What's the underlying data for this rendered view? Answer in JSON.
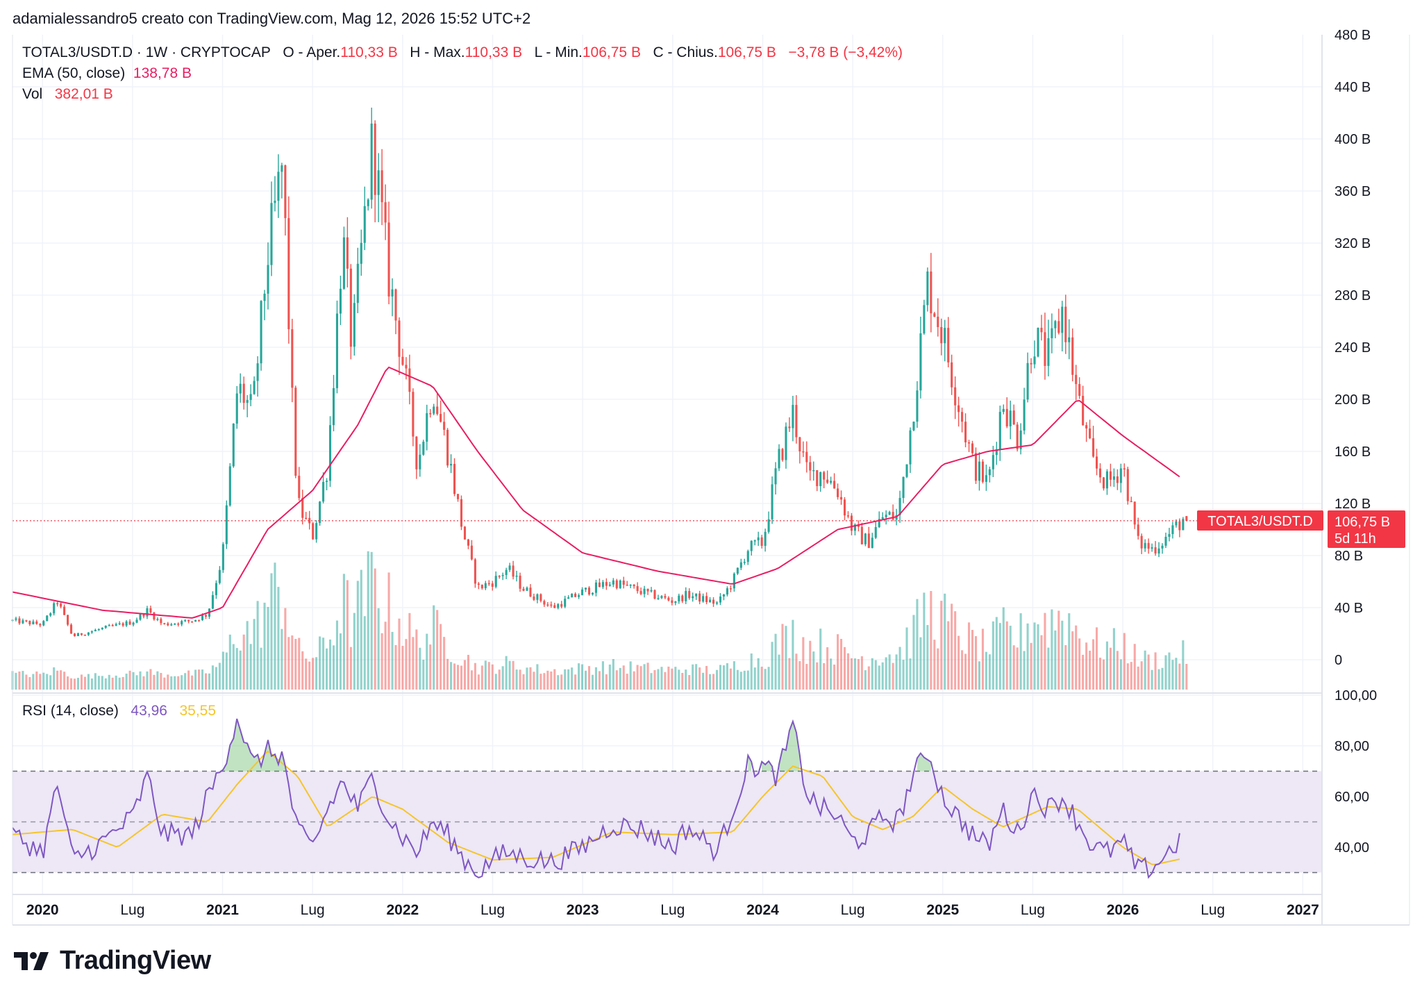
{
  "watermark": "adamialessandro5 creato con TradingView.com, Mag 12, 2026 15:52 UTC+2",
  "brand": "TradingView",
  "legend": {
    "symbol": "TOTAL3/USDT.D · 1W · CRYPTOCAP",
    "open_label": "O - Aper.",
    "open": "110,33 B",
    "high_label": "H - Max.",
    "high": "110,33 B",
    "low_label": "L - Min.",
    "low": "106,75 B",
    "close_label": "C - Chius.",
    "close": "106,75 B",
    "change": "−3,78 B (−3,42%)",
    "ema_label": "EMA (50, close)",
    "ema_value": "138,78 B",
    "vol_label": "Vol",
    "vol_value": "382,01 B",
    "rsi_label": "RSI (14, close)",
    "rsi_value": "43,96",
    "rsi_ma_value": "35,55"
  },
  "price_tag": {
    "symbol": "TOTAL3/USDT.D",
    "price": "106,75 B",
    "countdown": "5d 11h"
  },
  "colors": {
    "up": "#26A69A",
    "down": "#EF5350",
    "ema": "#E91E63",
    "rsi": "#7E57C2",
    "rsi_ma": "#F5C52A",
    "rsi_band": "#EDE7F6",
    "grid": "#F0F3FA",
    "price_line": "#F23645"
  },
  "chart_data": [
    {
      "type": "candlestick",
      "title": "TOTAL3/USDT.D · 1W · CRYPTOCAP",
      "y_ticks": [
        "0",
        "40 B",
        "80 B",
        "120 B",
        "160 B",
        "200 B",
        "240 B",
        "280 B",
        "320 B",
        "360 B",
        "400 B",
        "440 B",
        "480 B"
      ],
      "ylim": [
        0,
        480
      ],
      "x_ticks": [
        "2020",
        "Lug",
        "2021",
        "Lug",
        "2022",
        "Lug",
        "2023",
        "Lug",
        "2024",
        "Lug",
        "2025",
        "Lug",
        "2026",
        "Lug",
        "2027"
      ],
      "x_range": [
        "2019-11",
        "2027-02"
      ],
      "last_price": 106.75,
      "anchors": [
        {
          "x": "2019-11",
          "y": 30
        },
        {
          "x": "2020-01",
          "y": 27
        },
        {
          "x": "2020-02",
          "y": 45
        },
        {
          "x": "2020-03",
          "y": 18
        },
        {
          "x": "2020-05",
          "y": 24
        },
        {
          "x": "2020-07",
          "y": 29
        },
        {
          "x": "2020-08",
          "y": 38
        },
        {
          "x": "2020-09",
          "y": 27
        },
        {
          "x": "2020-11",
          "y": 30
        },
        {
          "x": "2020-12",
          "y": 35
        },
        {
          "x": "2021-01",
          "y": 80
        },
        {
          "x": "2021-02",
          "y": 210
        },
        {
          "x": "2021-03",
          "y": 190
        },
        {
          "x": "2021-04",
          "y": 310
        },
        {
          "x": "2021-05",
          "y": 380
        },
        {
          "x": "2021-05-20",
          "y": 200
        },
        {
          "x": "2021-06",
          "y": 120
        },
        {
          "x": "2021-07",
          "y": 95
        },
        {
          "x": "2021-08",
          "y": 150
        },
        {
          "x": "2021-09",
          "y": 325
        },
        {
          "x": "2021-09-20",
          "y": 240
        },
        {
          "x": "2021-11",
          "y": 400
        },
        {
          "x": "2021-12",
          "y": 300
        },
        {
          "x": "2022-01",
          "y": 230
        },
        {
          "x": "2022-02",
          "y": 150
        },
        {
          "x": "2022-03",
          "y": 210
        },
        {
          "x": "2022-04",
          "y": 160
        },
        {
          "x": "2022-05",
          "y": 100
        },
        {
          "x": "2022-06",
          "y": 55
        },
        {
          "x": "2022-07",
          "y": 60
        },
        {
          "x": "2022-08",
          "y": 70
        },
        {
          "x": "2022-09",
          "y": 55
        },
        {
          "x": "2022-11",
          "y": 40
        },
        {
          "x": "2023-01",
          "y": 52
        },
        {
          "x": "2023-03",
          "y": 60
        },
        {
          "x": "2023-05",
          "y": 52
        },
        {
          "x": "2023-07",
          "y": 45
        },
        {
          "x": "2023-08",
          "y": 50
        },
        {
          "x": "2023-10",
          "y": 43
        },
        {
          "x": "2023-11",
          "y": 60
        },
        {
          "x": "2023-12",
          "y": 85
        },
        {
          "x": "2024-01",
          "y": 90
        },
        {
          "x": "2024-02",
          "y": 150
        },
        {
          "x": "2024-03",
          "y": 190
        },
        {
          "x": "2024-04",
          "y": 140
        },
        {
          "x": "2024-05",
          "y": 145
        },
        {
          "x": "2024-06",
          "y": 130
        },
        {
          "x": "2024-07",
          "y": 100
        },
        {
          "x": "2024-08",
          "y": 90
        },
        {
          "x": "2024-09",
          "y": 110
        },
        {
          "x": "2024-10",
          "y": 110
        },
        {
          "x": "2024-11",
          "y": 190
        },
        {
          "x": "2024-12",
          "y": 290
        },
        {
          "x": "2025-01",
          "y": 250
        },
        {
          "x": "2025-02",
          "y": 200
        },
        {
          "x": "2025-03",
          "y": 150
        },
        {
          "x": "2025-04",
          "y": 135
        },
        {
          "x": "2025-05",
          "y": 200
        },
        {
          "x": "2025-06",
          "y": 170
        },
        {
          "x": "2025-07",
          "y": 250
        },
        {
          "x": "2025-08",
          "y": 230
        },
        {
          "x": "2025-09",
          "y": 270
        },
        {
          "x": "2025-10",
          "y": 200
        },
        {
          "x": "2025-11",
          "y": 150
        },
        {
          "x": "2025-12",
          "y": 135
        },
        {
          "x": "2026-01",
          "y": 150
        },
        {
          "x": "2026-02",
          "y": 90
        },
        {
          "x": "2026-03",
          "y": 85
        },
        {
          "x": "2026-04",
          "y": 95
        },
        {
          "x": "2026-05",
          "y": 108
        }
      ],
      "ema": [
        {
          "x": "2019-11",
          "y": 52
        },
        {
          "x": "2020-05",
          "y": 38
        },
        {
          "x": "2020-11",
          "y": 32
        },
        {
          "x": "2021-01",
          "y": 40
        },
        {
          "x": "2021-04",
          "y": 100
        },
        {
          "x": "2021-07",
          "y": 130
        },
        {
          "x": "2021-10",
          "y": 180
        },
        {
          "x": "2021-12",
          "y": 225
        },
        {
          "x": "2022-03",
          "y": 210
        },
        {
          "x": "2022-06",
          "y": 160
        },
        {
          "x": "2022-09",
          "y": 115
        },
        {
          "x": "2023-01",
          "y": 82
        },
        {
          "x": "2023-06",
          "y": 68
        },
        {
          "x": "2023-11",
          "y": 58
        },
        {
          "x": "2024-02",
          "y": 70
        },
        {
          "x": "2024-06",
          "y": 100
        },
        {
          "x": "2024-10",
          "y": 110
        },
        {
          "x": "2025-01",
          "y": 150
        },
        {
          "x": "2025-04",
          "y": 160
        },
        {
          "x": "2025-07",
          "y": 165
        },
        {
          "x": "2025-10",
          "y": 200
        },
        {
          "x": "2026-01",
          "y": 172
        },
        {
          "x": "2026-05",
          "y": 138.78
        }
      ],
      "volume_last": 382.01
    },
    {
      "type": "line",
      "title": "RSI (14, close)",
      "y_ticks": [
        "40,00",
        "60,00",
        "80,00",
        "100,00"
      ],
      "ylim": [
        20,
        100
      ],
      "bands": [
        30,
        50,
        70
      ],
      "series": [
        {
          "name": "RSI",
          "values": [
            {
              "x": "2019-11",
              "y": 45
            },
            {
              "x": "2020-01",
              "y": 38
            },
            {
              "x": "2020-02",
              "y": 65
            },
            {
              "x": "2020-03",
              "y": 35
            },
            {
              "x": "2020-05",
              "y": 42
            },
            {
              "x": "2020-07",
              "y": 52
            },
            {
              "x": "2020-08",
              "y": 68
            },
            {
              "x": "2020-09",
              "y": 45
            },
            {
              "x": "2020-11",
              "y": 45
            },
            {
              "x": "2020-12",
              "y": 60
            },
            {
              "x": "2021-01",
              "y": 72
            },
            {
              "x": "2021-02",
              "y": 92
            },
            {
              "x": "2021-03",
              "y": 72
            },
            {
              "x": "2021-04",
              "y": 78
            },
            {
              "x": "2021-05",
              "y": 76
            },
            {
              "x": "2021-06",
              "y": 46
            },
            {
              "x": "2021-07",
              "y": 40
            },
            {
              "x": "2021-08",
              "y": 55
            },
            {
              "x": "2021-09",
              "y": 66
            },
            {
              "x": "2021-10",
              "y": 55
            },
            {
              "x": "2021-11",
              "y": 68
            },
            {
              "x": "2021-12",
              "y": 52
            },
            {
              "x": "2022-01",
              "y": 44
            },
            {
              "x": "2022-02",
              "y": 38
            },
            {
              "x": "2022-03",
              "y": 50
            },
            {
              "x": "2022-04",
              "y": 45
            },
            {
              "x": "2022-05",
              "y": 36
            },
            {
              "x": "2022-06",
              "y": 30
            },
            {
              "x": "2022-07",
              "y": 35
            },
            {
              "x": "2022-08",
              "y": 38
            },
            {
              "x": "2022-09",
              "y": 36
            },
            {
              "x": "2022-11",
              "y": 34
            },
            {
              "x": "2023-01",
              "y": 40
            },
            {
              "x": "2023-03",
              "y": 49
            },
            {
              "x": "2023-05",
              "y": 47
            },
            {
              "x": "2023-07",
              "y": 40
            },
            {
              "x": "2023-08",
              "y": 48
            },
            {
              "x": "2023-10",
              "y": 38
            },
            {
              "x": "2023-11",
              "y": 55
            },
            {
              "x": "2023-12",
              "y": 72
            },
            {
              "x": "2024-01",
              "y": 72
            },
            {
              "x": "2024-02",
              "y": 68
            },
            {
              "x": "2024-03",
              "y": 88
            },
            {
              "x": "2024-04",
              "y": 60
            },
            {
              "x": "2024-05",
              "y": 55
            },
            {
              "x": "2024-06",
              "y": 52
            },
            {
              "x": "2024-07",
              "y": 42
            },
            {
              "x": "2024-08",
              "y": 45
            },
            {
              "x": "2024-09",
              "y": 52
            },
            {
              "x": "2024-10",
              "y": 50
            },
            {
              "x": "2024-11",
              "y": 68
            },
            {
              "x": "2024-12",
              "y": 78
            },
            {
              "x": "2025-01",
              "y": 60
            },
            {
              "x": "2025-02",
              "y": 52
            },
            {
              "x": "2025-03",
              "y": 45
            },
            {
              "x": "2025-04",
              "y": 40
            },
            {
              "x": "2025-05",
              "y": 55
            },
            {
              "x": "2025-06",
              "y": 45
            },
            {
              "x": "2025-07",
              "y": 62
            },
            {
              "x": "2025-08",
              "y": 55
            },
            {
              "x": "2025-09",
              "y": 60
            },
            {
              "x": "2025-10",
              "y": 50
            },
            {
              "x": "2025-11",
              "y": 40
            },
            {
              "x": "2025-12",
              "y": 38
            },
            {
              "x": "2026-01",
              "y": 42
            },
            {
              "x": "2026-02",
              "y": 31
            },
            {
              "x": "2026-03",
              "y": 32
            },
            {
              "x": "2026-04",
              "y": 38
            },
            {
              "x": "2026-05",
              "y": 43.96
            }
          ]
        },
        {
          "name": "RSI-based MA",
          "values": [
            {
              "x": "2019-11",
              "y": 45
            },
            {
              "x": "2020-03",
              "y": 47
            },
            {
              "x": "2020-06",
              "y": 40
            },
            {
              "x": "2020-09",
              "y": 53
            },
            {
              "x": "2020-12",
              "y": 50
            },
            {
              "x": "2021-02",
              "y": 65
            },
            {
              "x": "2021-04",
              "y": 78
            },
            {
              "x": "2021-06",
              "y": 68
            },
            {
              "x": "2021-08",
              "y": 48
            },
            {
              "x": "2021-11",
              "y": 60
            },
            {
              "x": "2022-01",
              "y": 55
            },
            {
              "x": "2022-04",
              "y": 42
            },
            {
              "x": "2022-07",
              "y": 35
            },
            {
              "x": "2022-11",
              "y": 36
            },
            {
              "x": "2023-03",
              "y": 46
            },
            {
              "x": "2023-07",
              "y": 45
            },
            {
              "x": "2023-11",
              "y": 46
            },
            {
              "x": "2024-01",
              "y": 60
            },
            {
              "x": "2024-03",
              "y": 72
            },
            {
              "x": "2024-05",
              "y": 68
            },
            {
              "x": "2024-07",
              "y": 52
            },
            {
              "x": "2024-09",
              "y": 47
            },
            {
              "x": "2024-11",
              "y": 52
            },
            {
              "x": "2025-01",
              "y": 64
            },
            {
              "x": "2025-03",
              "y": 55
            },
            {
              "x": "2025-05",
              "y": 48
            },
            {
              "x": "2025-08",
              "y": 56
            },
            {
              "x": "2025-10",
              "y": 55
            },
            {
              "x": "2026-01",
              "y": 40
            },
            {
              "x": "2026-03",
              "y": 33
            },
            {
              "x": "2026-05",
              "y": 35.55
            }
          ]
        }
      ]
    }
  ]
}
